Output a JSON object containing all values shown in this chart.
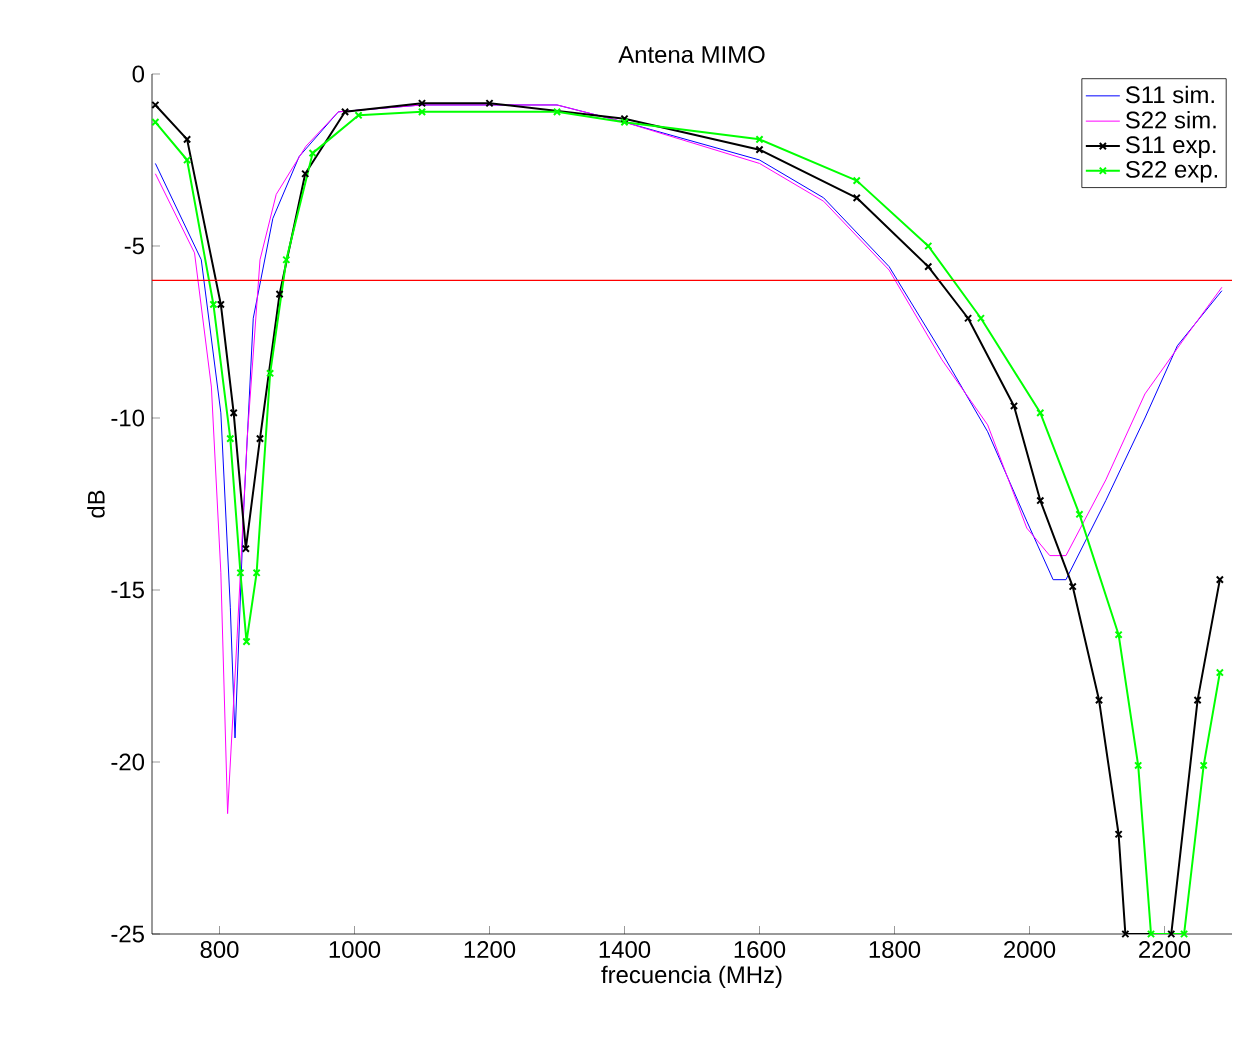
{
  "chart_data": {
    "type": "line",
    "title": "Antena MIMO",
    "xlabel": "frecuencia (MHz)",
    "ylabel": "dB",
    "xlim": [
      700,
      2300
    ],
    "ylim": [
      -25,
      0
    ],
    "xticks": [
      800,
      1000,
      1200,
      1400,
      1600,
      1800,
      2000,
      2200
    ],
    "yticks": [
      -25,
      -20,
      -15,
      -10,
      -5,
      0
    ],
    "legend": "top right",
    "grid": false,
    "line_style": "solid",
    "ref_lines": [
      {
        "axis": "y",
        "value": -6,
        "color": "#ff0000"
      }
    ],
    "series": [
      {
        "name": "S11 sim.",
        "color": "#0000ff",
        "marker": "none",
        "x": [
          705,
          773,
          802,
          816,
          823,
          836,
          850,
          879,
          918,
          976,
          1100,
          1300,
          1400,
          1600,
          1695,
          1792,
          1870,
          1938,
          1996,
          2035,
          2054,
          2113,
          2171,
          2219,
          2285
        ],
        "values": [
          -2.6,
          -5.4,
          -9.85,
          -15.5,
          -19.3,
          -12.6,
          -7.1,
          -4.2,
          -2.4,
          -1.1,
          -0.9,
          -0.9,
          -1.4,
          -2.5,
          -3.6,
          -5.6,
          -8.1,
          -10.4,
          -13.0,
          -14.7,
          -14.7,
          -12.4,
          -10.0,
          -7.9,
          -6.3
        ]
      },
      {
        "name": "S22 sim.",
        "color": "#ff00ff",
        "marker": "none",
        "x": [
          705,
          763,
          788,
          802,
          812,
          826,
          841,
          860,
          884,
          928,
          976,
          1100,
          1300,
          1400,
          1600,
          1695,
          1792,
          1870,
          1938,
          1996,
          2030,
          2054,
          2113,
          2171,
          2229,
          2285
        ],
        "values": [
          -2.9,
          -5.2,
          -9.1,
          -14.5,
          -21.5,
          -16.4,
          -10.6,
          -5.4,
          -3.5,
          -2.1,
          -1.1,
          -0.9,
          -0.9,
          -1.4,
          -2.6,
          -3.7,
          -5.7,
          -8.3,
          -10.2,
          -13.2,
          -14.0,
          -14.0,
          -11.8,
          -9.3,
          -7.7,
          -6.2
        ]
      },
      {
        "name": "S11 exp.",
        "color": "#000000",
        "marker": "cross",
        "x": [
          705,
          752,
          802,
          821,
          839,
          860,
          889,
          927,
          986,
          1100,
          1200,
          1400,
          1600,
          1744,
          1850,
          1909,
          1977,
          2016,
          2064,
          2103,
          2132,
          2142,
          2210,
          2249,
          2282
        ],
        "values": [
          -0.9,
          -1.9,
          -6.7,
          -9.85,
          -13.8,
          -10.6,
          -6.4,
          -2.9,
          -1.1,
          -0.85,
          -0.85,
          -1.3,
          -2.2,
          -3.6,
          -5.6,
          -7.1,
          -9.65,
          -12.4,
          -14.9,
          -18.2,
          -22.1,
          -25,
          -25,
          -18.2,
          -14.7
        ]
      },
      {
        "name": "S22 exp.",
        "color": "#00ff00",
        "marker": "cross",
        "x": [
          705,
          752,
          791,
          816,
          831,
          840,
          855,
          875,
          899,
          938,
          1006,
          1100,
          1300,
          1400,
          1600,
          1744,
          1850,
          1928,
          2016,
          2074,
          2132,
          2161,
          2180,
          2229,
          2258,
          2282
        ],
        "values": [
          -1.4,
          -2.5,
          -6.7,
          -10.6,
          -14.5,
          -16.5,
          -14.5,
          -8.7,
          -5.4,
          -2.3,
          -1.2,
          -1.1,
          -1.1,
          -1.4,
          -1.9,
          -3.1,
          -5.0,
          -7.1,
          -9.85,
          -12.8,
          -16.3,
          -20.1,
          -25,
          -25,
          -20.1,
          -17.4
        ]
      }
    ]
  }
}
